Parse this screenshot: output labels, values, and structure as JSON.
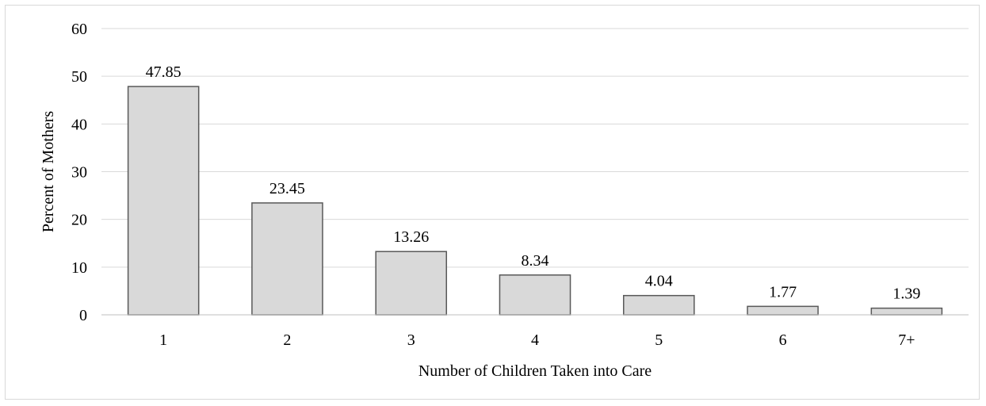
{
  "chart_data": {
    "type": "bar",
    "categories": [
      "1",
      "2",
      "3",
      "4",
      "5",
      "6",
      "7+"
    ],
    "values": [
      47.85,
      23.45,
      13.26,
      8.34,
      4.04,
      1.77,
      1.39
    ],
    "data_labels": [
      "47.85",
      "23.45",
      "13.26",
      "8.34",
      "4.04",
      "1.77",
      "1.39"
    ],
    "xlabel": "Number of Children Taken into Care",
    "ylabel": "Percent of Mothers",
    "ylim": [
      0,
      60
    ],
    "yticks": [
      "0",
      "10",
      "20",
      "30",
      "40",
      "50",
      "60"
    ],
    "grid": true,
    "legend": "none",
    "colors": {
      "bar_fill": "#d9d9d9",
      "bar_stroke": "#595959",
      "grid": "#d9d9d9",
      "axis": "#bfbfbf"
    }
  }
}
